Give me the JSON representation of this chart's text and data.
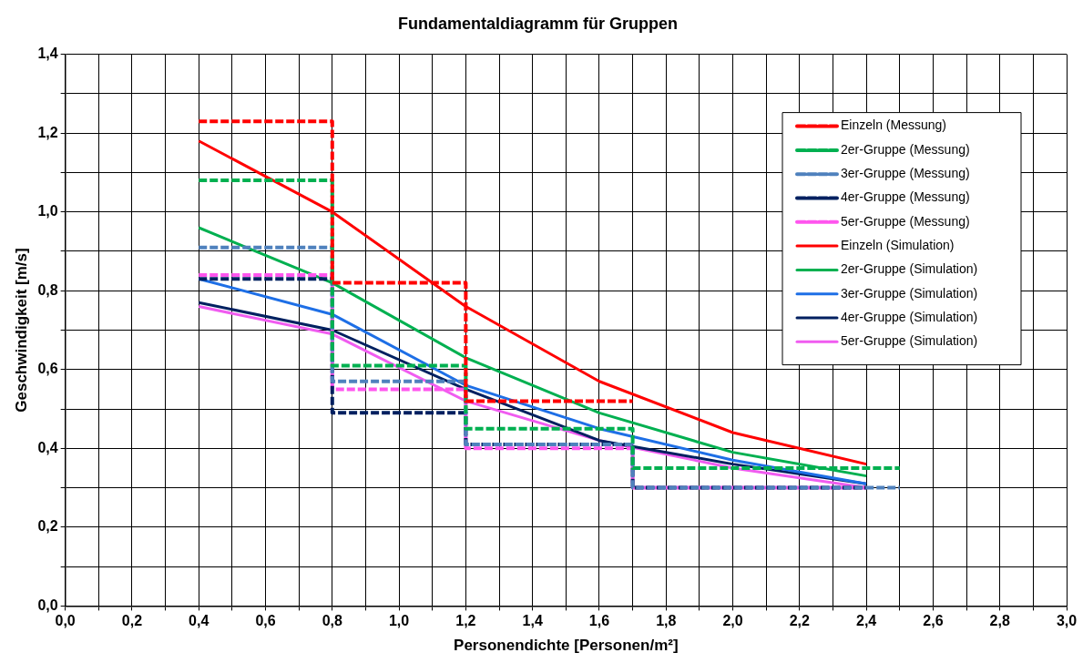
{
  "chart_data": {
    "type": "line",
    "title": "Fundamentaldiagramm für Gruppen",
    "xlabel": "Personendichte [Personen/m²]",
    "ylabel": "Geschwindigkeit [m/s]",
    "xlim": [
      0,
      3
    ],
    "ylim": [
      0,
      1.4
    ],
    "xticks": [
      {
        "value": 0,
        "label": "0,0"
      },
      {
        "value": 0.1,
        "label": null
      },
      {
        "value": 0.2,
        "label": "0,2"
      },
      {
        "value": 0.3,
        "label": null
      },
      {
        "value": 0.4,
        "label": "0,4"
      },
      {
        "value": 0.5,
        "label": null
      },
      {
        "value": 0.6,
        "label": "0,6"
      },
      {
        "value": 0.7,
        "label": null
      },
      {
        "value": 0.8,
        "label": "0,8"
      },
      {
        "value": 0.9,
        "label": null
      },
      {
        "value": 1,
        "label": "1,0"
      },
      {
        "value": 1.1,
        "label": null
      },
      {
        "value": 1.2,
        "label": "1,2"
      },
      {
        "value": 1.3,
        "label": null
      },
      {
        "value": 1.4,
        "label": "1,4"
      },
      {
        "value": 1.5,
        "label": null
      },
      {
        "value": 1.6,
        "label": "1,6"
      },
      {
        "value": 1.7,
        "label": null
      },
      {
        "value": 1.8,
        "label": "1,8"
      },
      {
        "value": 1.9,
        "label": null
      },
      {
        "value": 2,
        "label": "2,0"
      },
      {
        "value": 2.1,
        "label": null
      },
      {
        "value": 2.2,
        "label": "2,2"
      },
      {
        "value": 2.3,
        "label": null
      },
      {
        "value": 2.4,
        "label": "2,4"
      },
      {
        "value": 2.5,
        "label": null
      },
      {
        "value": 2.6,
        "label": "2,6"
      },
      {
        "value": 2.7,
        "label": null
      },
      {
        "value": 2.8,
        "label": "2,8"
      },
      {
        "value": 2.9,
        "label": null
      },
      {
        "value": 3,
        "label": "3,0"
      }
    ],
    "yticks": [
      {
        "value": 0,
        "label": "0,0"
      },
      {
        "value": 0.1,
        "label": null
      },
      {
        "value": 0.2,
        "label": "0,2"
      },
      {
        "value": 0.3,
        "label": null
      },
      {
        "value": 0.4,
        "label": "0,4"
      },
      {
        "value": 0.5,
        "label": null
      },
      {
        "value": 0.6,
        "label": "0,6"
      },
      {
        "value": 0.7,
        "label": null
      },
      {
        "value": 0.8,
        "label": "0,8"
      },
      {
        "value": 0.9,
        "label": null
      },
      {
        "value": 1,
        "label": "1,0"
      },
      {
        "value": 1.1,
        "label": null
      },
      {
        "value": 1.2,
        "label": "1,2"
      },
      {
        "value": 1.3,
        "label": null
      },
      {
        "value": 1.4,
        "label": "1,4"
      }
    ],
    "grid": true,
    "legend": "top right",
    "marker": "none",
    "series": [
      {
        "name": "Einzeln (Messung)",
        "color": "#ff0000",
        "line_style": "dashed",
        "x": [
          0.4,
          0.8,
          0.8,
          1.2,
          1.2,
          1.7
        ],
        "values": [
          1.23,
          1.23,
          0.82,
          0.82,
          0.52,
          0.52
        ]
      },
      {
        "name": "2er-Gruppe (Messung)",
        "color": "#00b050",
        "line_style": "dashed",
        "x": [
          0.4,
          0.8,
          0.8,
          1.2,
          1.2,
          1.7,
          1.7,
          2.5
        ],
        "values": [
          1.08,
          1.08,
          0.61,
          0.61,
          0.45,
          0.45,
          0.35,
          0.35
        ]
      },
      {
        "name": "3er-Gruppe (Messung)",
        "color": "#4f81bd",
        "line_style": "dashed",
        "x": [
          0.4,
          0.8,
          0.8,
          1.2,
          1.2,
          1.7,
          1.7,
          2.5
        ],
        "values": [
          0.91,
          0.91,
          0.57,
          0.57,
          0.41,
          0.41,
          0.3,
          0.3
        ]
      },
      {
        "name": "4er-Gruppe (Messung)",
        "color": "#002060",
        "line_style": "dashed",
        "x": [
          0.4,
          0.8,
          0.8,
          1.2,
          1.2,
          1.7,
          1.7,
          2.4
        ],
        "values": [
          0.83,
          0.83,
          0.49,
          0.49,
          0.41,
          0.41,
          0.3,
          0.3
        ]
      },
      {
        "name": "5er-Gruppe (Messung)",
        "color": "#ff55ee",
        "line_style": "dashed",
        "x": [
          0.4,
          0.8,
          0.8,
          1.2,
          1.2,
          1.7,
          1.7,
          2.4
        ],
        "values": [
          0.84,
          0.84,
          0.55,
          0.55,
          0.4,
          0.4,
          0.3,
          0.3
        ]
      },
      {
        "name": "Einzeln (Simulation)",
        "color": "#ff0000",
        "line_style": "solid",
        "x": [
          0.4,
          0.8,
          1.2,
          1.6,
          2.0,
          2.4
        ],
        "values": [
          1.18,
          1.0,
          0.76,
          0.57,
          0.44,
          0.36
        ]
      },
      {
        "name": "2er-Gruppe (Simulation)",
        "color": "#00b050",
        "line_style": "solid",
        "x": [
          0.4,
          0.8,
          1.2,
          1.6,
          2.0,
          2.4
        ],
        "values": [
          0.96,
          0.82,
          0.63,
          0.49,
          0.39,
          0.33
        ]
      },
      {
        "name": "3er-Gruppe (Simulation)",
        "color": "#1e6fe6",
        "line_style": "solid",
        "x": [
          0.4,
          0.8,
          1.2,
          1.6,
          2.0,
          2.4
        ],
        "values": [
          0.83,
          0.74,
          0.56,
          0.45,
          0.37,
          0.31
        ]
      },
      {
        "name": "4er-Gruppe (Simulation)",
        "color": "#002060",
        "line_style": "solid",
        "x": [
          0.4,
          0.8,
          1.2,
          1.6,
          2.0,
          2.4
        ],
        "values": [
          0.77,
          0.7,
          0.55,
          0.42,
          0.36,
          0.31
        ]
      },
      {
        "name": "5er-Gruppe (Simulation)",
        "color": "#f05cf0",
        "line_style": "solid",
        "x": [
          0.4,
          0.8,
          1.2,
          1.6,
          2.0,
          2.4
        ],
        "values": [
          0.76,
          0.69,
          0.52,
          0.42,
          0.35,
          0.3
        ]
      }
    ]
  }
}
